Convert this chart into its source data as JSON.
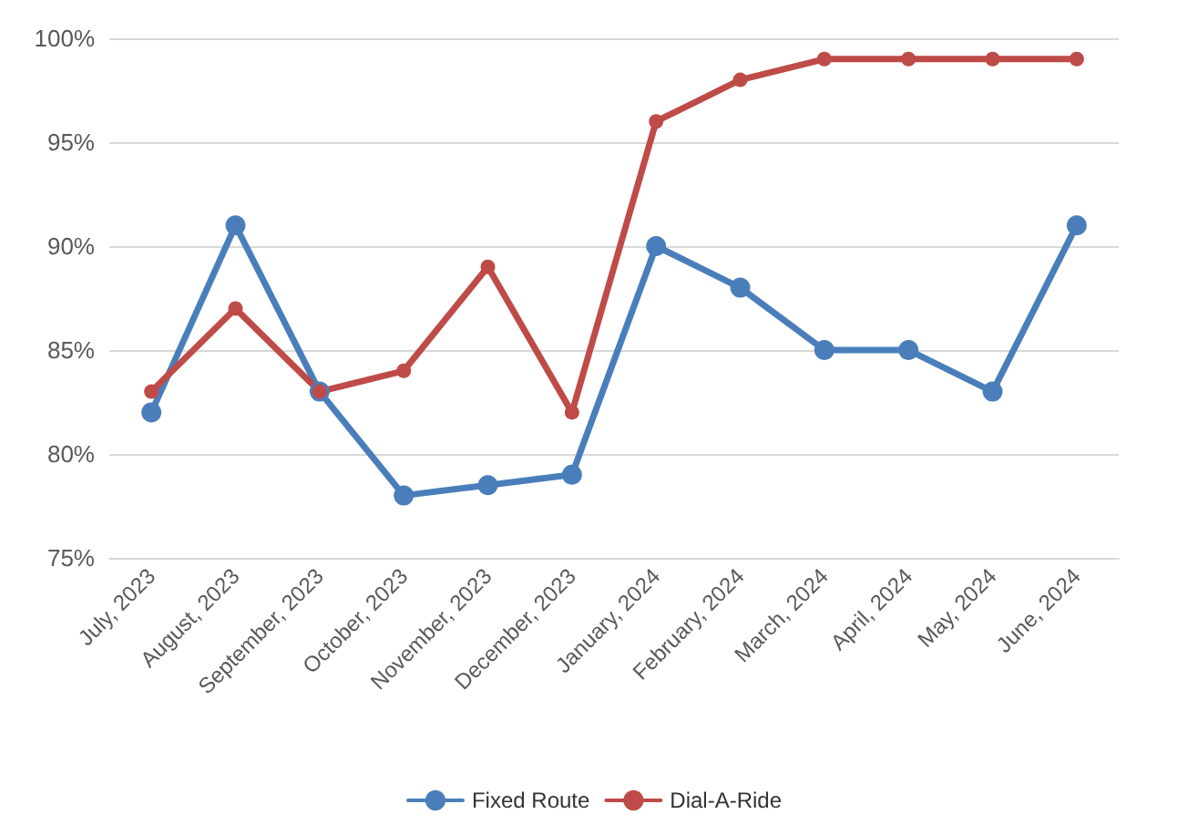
{
  "chart_data": {
    "type": "line",
    "categories": [
      "July, 2023",
      "August, 2023",
      "September, 2023",
      "October, 2023",
      "November, 2023",
      "December, 2023",
      "January, 2024",
      "February, 2024",
      "March, 2024",
      "April, 2024",
      "May, 2024",
      "June, 2024"
    ],
    "series": [
      {
        "name": "Fixed Route",
        "color": "#4a7ebb",
        "values": [
          82,
          91,
          83,
          78,
          78.5,
          79,
          90,
          88,
          85,
          85,
          83,
          91
        ]
      },
      {
        "name": "Dial-A-Ride",
        "color": "#be4b48",
        "values": [
          83,
          87,
          83,
          84,
          89,
          82,
          96,
          98,
          99,
          99,
          99,
          99
        ]
      }
    ],
    "ylim": [
      75,
      100
    ],
    "yticks": [
      {
        "value": 75,
        "label": "75%"
      },
      {
        "value": 80,
        "label": "80%"
      },
      {
        "value": 85,
        "label": "85%"
      },
      {
        "value": 90,
        "label": "90%"
      },
      {
        "value": 95,
        "label": "95%"
      },
      {
        "value": 100,
        "label": "100%"
      }
    ],
    "grid": "y",
    "legend": "bottom",
    "marker": "circle",
    "line_style": "solid"
  }
}
